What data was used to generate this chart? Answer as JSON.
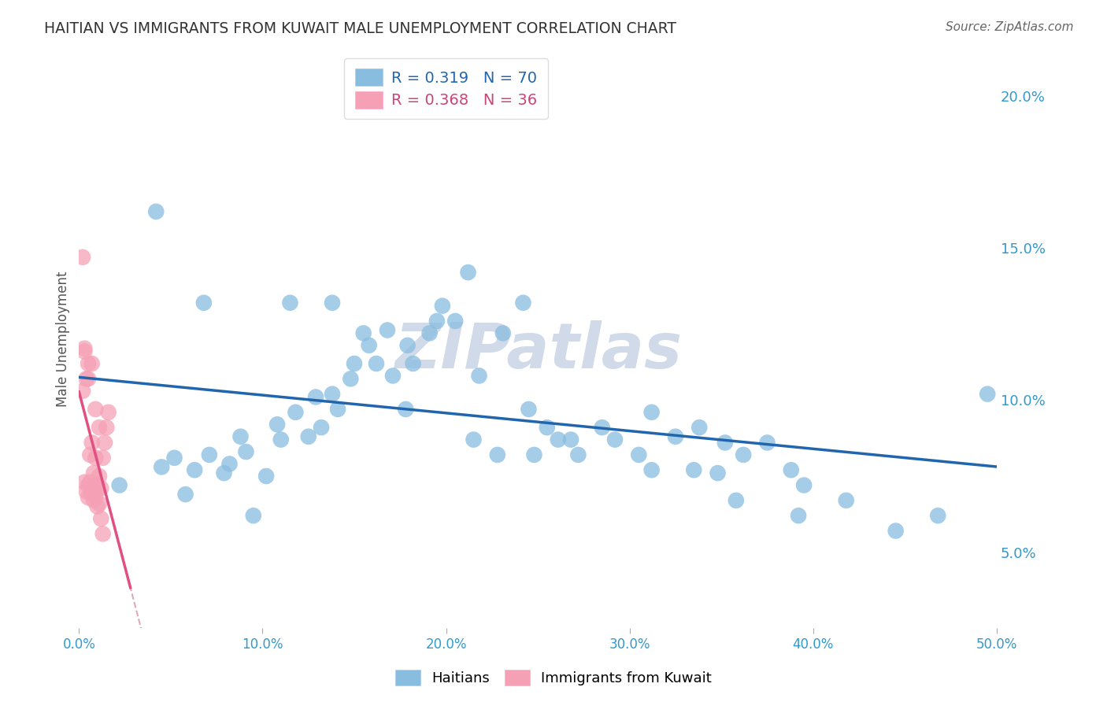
{
  "title": "HAITIAN VS IMMIGRANTS FROM KUWAIT MALE UNEMPLOYMENT CORRELATION CHART",
  "source": "Source: ZipAtlas.com",
  "ylabel": "Male Unemployment",
  "legend_label1": "Haitians",
  "legend_label2": "Immigrants from Kuwait",
  "R1": 0.319,
  "N1": 70,
  "R2": 0.368,
  "N2": 36,
  "xlim": [
    0.0,
    0.5
  ],
  "ylim": [
    0.025,
    0.215
  ],
  "xticks": [
    0.0,
    0.1,
    0.2,
    0.3,
    0.4,
    0.5
  ],
  "yticks": [
    0.05,
    0.1,
    0.15,
    0.2
  ],
  "ytick_labels": [
    "5.0%",
    "10.0%",
    "15.0%",
    "20.0%"
  ],
  "xtick_labels": [
    "0.0%",
    "10.0%",
    "20.0%",
    "30.0%",
    "40.0%",
    "50.0%"
  ],
  "blue_color": "#89bde0",
  "pink_color": "#f5a0b5",
  "blue_line_color": "#2166ac",
  "pink_line_color": "#e05080",
  "pink_dash_color": "#d8a0b0",
  "watermark_color": "#d0dae8",
  "blue_dots_x": [
    0.022,
    0.045,
    0.052,
    0.063,
    0.058,
    0.071,
    0.082,
    0.079,
    0.091,
    0.088,
    0.102,
    0.11,
    0.108,
    0.118,
    0.125,
    0.132,
    0.129,
    0.141,
    0.138,
    0.15,
    0.148,
    0.162,
    0.158,
    0.171,
    0.168,
    0.182,
    0.179,
    0.191,
    0.198,
    0.205,
    0.212,
    0.218,
    0.231,
    0.242,
    0.248,
    0.255,
    0.261,
    0.272,
    0.285,
    0.292,
    0.305,
    0.312,
    0.325,
    0.338,
    0.348,
    0.352,
    0.362,
    0.375,
    0.388,
    0.395,
    0.138,
    0.155,
    0.178,
    0.195,
    0.215,
    0.228,
    0.245,
    0.268,
    0.312,
    0.335,
    0.358,
    0.392,
    0.418,
    0.445,
    0.468,
    0.495,
    0.042,
    0.068,
    0.095,
    0.115
  ],
  "blue_dots_y": [
    0.072,
    0.078,
    0.081,
    0.077,
    0.069,
    0.082,
    0.079,
    0.076,
    0.083,
    0.088,
    0.075,
    0.087,
    0.092,
    0.096,
    0.088,
    0.091,
    0.101,
    0.097,
    0.102,
    0.112,
    0.107,
    0.112,
    0.118,
    0.108,
    0.123,
    0.112,
    0.118,
    0.122,
    0.131,
    0.126,
    0.142,
    0.108,
    0.122,
    0.132,
    0.082,
    0.091,
    0.087,
    0.082,
    0.091,
    0.087,
    0.082,
    0.096,
    0.088,
    0.091,
    0.076,
    0.086,
    0.082,
    0.086,
    0.077,
    0.072,
    0.132,
    0.122,
    0.097,
    0.126,
    0.087,
    0.082,
    0.097,
    0.087,
    0.077,
    0.077,
    0.067,
    0.062,
    0.067,
    0.057,
    0.062,
    0.102,
    0.162,
    0.132,
    0.062,
    0.132
  ],
  "pink_dots_x": [
    0.003,
    0.004,
    0.005,
    0.005,
    0.006,
    0.007,
    0.007,
    0.008,
    0.009,
    0.009,
    0.01,
    0.01,
    0.011,
    0.012,
    0.013,
    0.014,
    0.015,
    0.016,
    0.002,
    0.003,
    0.004,
    0.005,
    0.006,
    0.007,
    0.008,
    0.009,
    0.01,
    0.011,
    0.012,
    0.013,
    0.002,
    0.003,
    0.005,
    0.007,
    0.009,
    0.011
  ],
  "pink_dots_y": [
    0.073,
    0.07,
    0.072,
    0.068,
    0.073,
    0.069,
    0.071,
    0.067,
    0.072,
    0.068,
    0.071,
    0.065,
    0.075,
    0.071,
    0.081,
    0.086,
    0.091,
    0.096,
    0.103,
    0.116,
    0.107,
    0.112,
    0.082,
    0.086,
    0.076,
    0.081,
    0.072,
    0.066,
    0.061,
    0.056,
    0.147,
    0.117,
    0.107,
    0.112,
    0.097,
    0.091
  ]
}
